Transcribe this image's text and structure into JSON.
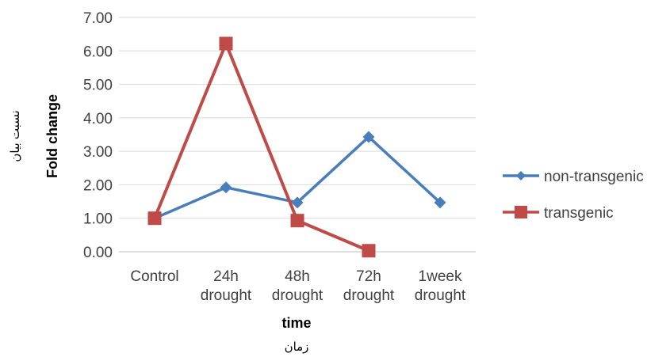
{
  "chart_data": {
    "type": "line",
    "categories": [
      [
        "Control"
      ],
      [
        "24h",
        "drought"
      ],
      [
        "48h",
        "drought"
      ],
      [
        "72h",
        "drought"
      ],
      [
        "1week",
        "drought"
      ]
    ],
    "y_ticks": [
      "0.00",
      "1.00",
      "2.00",
      "3.00",
      "4.00",
      "5.00",
      "6.00",
      "7.00"
    ],
    "ylim": [
      0,
      7
    ],
    "ylabel": "Fold change",
    "ylabel_secondary": "نسبت بیان",
    "xlabel": "time",
    "xlabel_secondary": "زمان",
    "grid": true,
    "legend_position": "right",
    "series": [
      {
        "name": "non-transgenic",
        "color": "#4a7ebb",
        "marker": "diamond",
        "values": [
          1.0,
          1.92,
          1.47,
          3.43,
          1.47
        ]
      },
      {
        "name": "transgenic",
        "color": "#be4b48",
        "marker": "square",
        "values": [
          1.0,
          6.22,
          0.93,
          0.03,
          null
        ]
      }
    ]
  }
}
